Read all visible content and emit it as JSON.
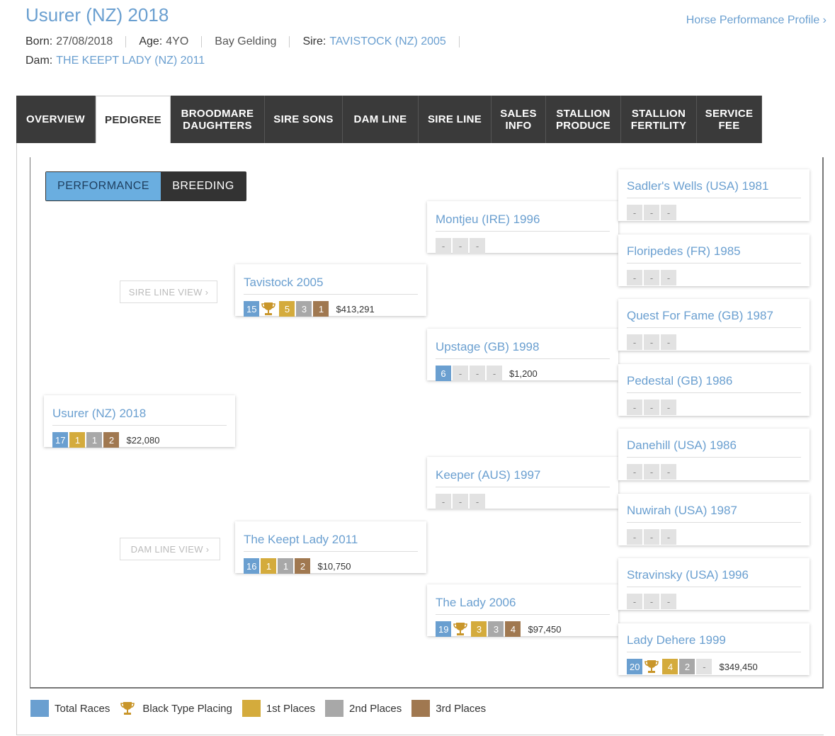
{
  "header": {
    "title": "Usurer (NZ) 2018",
    "profile_link": "Horse Performance Profile ›",
    "born_label": "Born:",
    "born": "27/08/2018",
    "age_label": "Age:",
    "age": "4YO",
    "sex": "Bay Gelding",
    "sire_label": "Sire:",
    "sire": "TAVISTOCK (NZ) 2005",
    "dam_label": "Dam:",
    "dam": "THE KEEPT LADY (NZ) 2011"
  },
  "tabs": [
    {
      "l1": "OVERVIEW",
      "l2": ""
    },
    {
      "l1": "PEDIGREE",
      "l2": ""
    },
    {
      "l1": "BROODMARE",
      "l2": "DAUGHTERS"
    },
    {
      "l1": "SIRE SONS",
      "l2": ""
    },
    {
      "l1": "DAM LINE",
      "l2": ""
    },
    {
      "l1": "SIRE LINE",
      "l2": ""
    },
    {
      "l1": "SALES",
      "l2": "INFO"
    },
    {
      "l1": "STALLION",
      "l2": "PRODUCE"
    },
    {
      "l1": "STALLION",
      "l2": "FERTILITY"
    },
    {
      "l1": "SERVICE",
      "l2": "FEE"
    }
  ],
  "active_tab": "PEDIGREE",
  "toggle": {
    "performance": "PERFORMANCE",
    "breeding": "BREEDING"
  },
  "sire_line_view": "SIRE LINE VIEW ›",
  "dam_line_view": "DAM LINE VIEW ›",
  "horses": {
    "self": {
      "name": "Usurer (NZ) 2018",
      "total": "17",
      "trophy": false,
      "first": "1",
      "second": "1",
      "third": "2",
      "prize": "$22,080"
    },
    "sire": {
      "name": "Tavistock 2005",
      "total": "15",
      "trophy": true,
      "first": "5",
      "second": "3",
      "third": "1",
      "prize": "$413,291"
    },
    "dam": {
      "name": "The Keept Lady 2011",
      "total": "16",
      "trophy": false,
      "first": "1",
      "second": "1",
      "third": "2",
      "prize": "$10,750"
    },
    "ss": {
      "name": "Montjeu (IRE) 1996",
      "total": "-",
      "first": "-",
      "second": "-",
      "third": "",
      "prize": ""
    },
    "sd": {
      "name": "Upstage (GB) 1998",
      "total": "6",
      "first": "-",
      "second": "-",
      "third": "-",
      "prize": "$1,200"
    },
    "ds": {
      "name": "Keeper (AUS) 1997",
      "total": "-",
      "first": "-",
      "second": "-",
      "third": "",
      "prize": ""
    },
    "dd": {
      "name": "The Lady 2006",
      "total": "19",
      "trophy": true,
      "first": "3",
      "second": "3",
      "third": "4",
      "prize": "$97,450"
    },
    "sss": {
      "name": "Sadler's Wells (USA) 1981"
    },
    "ssd": {
      "name": "Floripedes (FR) 1985"
    },
    "sds": {
      "name": "Quest For Fame (GB) 1987"
    },
    "sdd": {
      "name": "Pedestal (GB) 1986"
    },
    "dss": {
      "name": "Danehill (USA) 1986"
    },
    "dsd": {
      "name": "Nuwirah (USA) 1987"
    },
    "dds": {
      "name": "Stravinsky (USA) 1996"
    },
    "ddd": {
      "name": "Lady Dehere 1999",
      "total": "20",
      "trophy": true,
      "first": "4",
      "second": "2",
      "third": "-",
      "prize": "$349,450"
    }
  },
  "dash": "-",
  "legend": {
    "total": "Total Races",
    "black": "Black Type Placing",
    "first": "1st Places",
    "second": "2nd Places",
    "third": "3rd Places"
  },
  "colors": {
    "total": "#6a9fd0",
    "first": "#d4ab3c",
    "second": "#a8a8a8",
    "third": "#a07850",
    "trophy": "#c9962a"
  }
}
